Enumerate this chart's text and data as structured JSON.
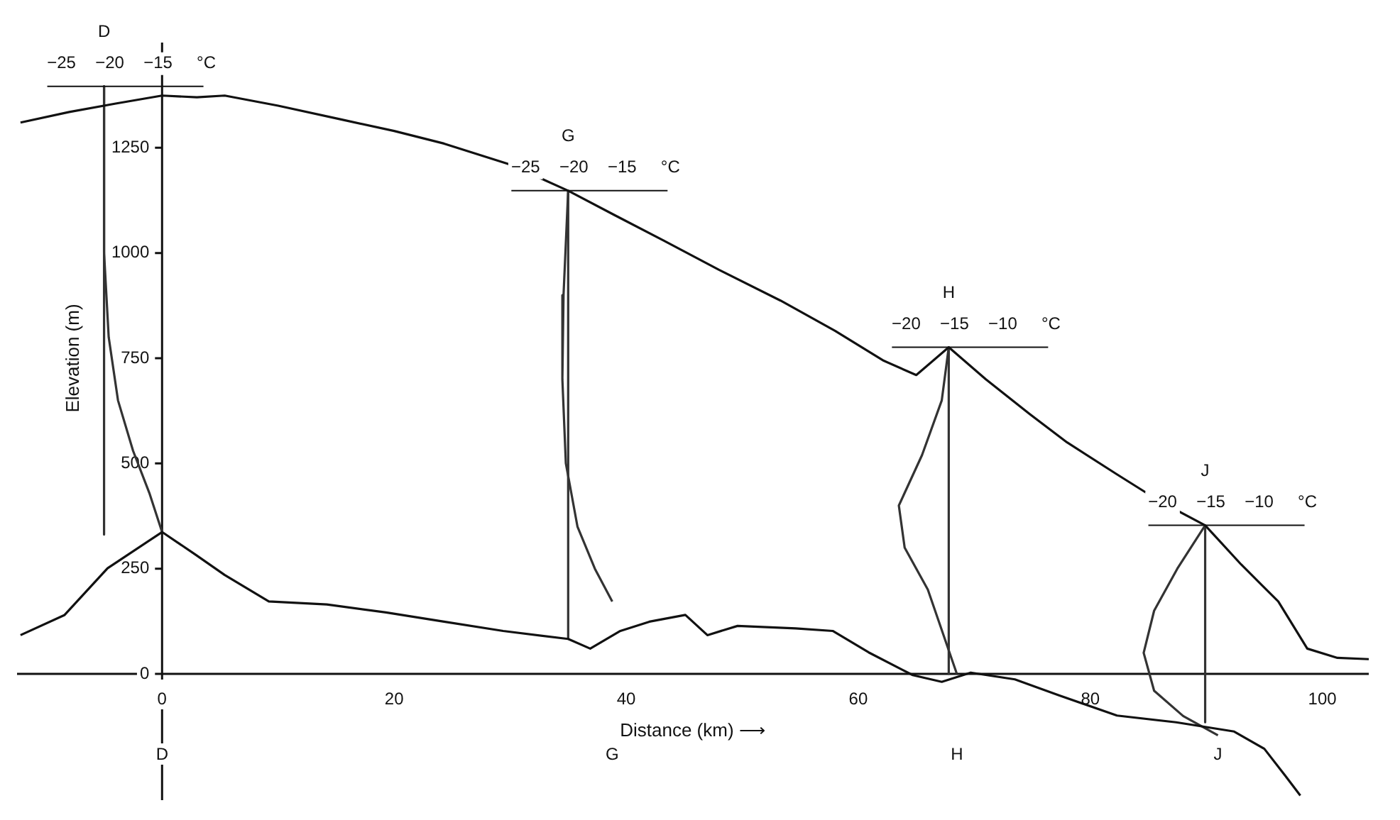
{
  "chart_data": {
    "type": "line",
    "xlabel": "Distance (km) ⟶",
    "ylabel": "Elevation (m)",
    "xlim": [
      -12.5,
      104
    ],
    "ylim": [
      -300,
      1500
    ],
    "xticks": [
      0,
      20,
      40,
      60,
      80,
      100
    ],
    "yticks": [
      0,
      250,
      500,
      750,
      1000,
      1250
    ],
    "grid": false,
    "legend": false,
    "marker": "none",
    "line_style": "solid",
    "series": [
      {
        "color": "#111111",
        "x": [
          -12.2,
          -8,
          -4,
          0,
          3,
          5.4,
          10,
          15.5,
          20,
          24.3,
          30,
          35,
          39,
          43.2,
          48,
          53.3,
          58,
          62.2,
          65,
          67.8,
          71,
          74.8,
          78,
          82.3,
          86,
          89.9,
          93,
          96.2,
          98.7,
          101.3,
          104
        ],
        "values": [
          1310,
          1335,
          1355,
          1374,
          1370,
          1374,
          1350,
          1317,
          1290,
          1260,
          1210,
          1148,
          1090,
          1030,
          960,
          887,
          815,
          744,
          710,
          776,
          700,
          617,
          550,
          474,
          410,
          353,
          260,
          172,
          60,
          38,
          35
        ]
      },
      {
        "color": "#111111",
        "x": [
          -12.2,
          -8.4,
          -4.7,
          0,
          2.9,
          5.4,
          9.2,
          14.2,
          19.3,
          24.3,
          29.4,
          35,
          36.9,
          39.5,
          42,
          45.1,
          47,
          49.6,
          54.6,
          57.8,
          60.9,
          64.7,
          67.2,
          69.7,
          73.5,
          77.3,
          82.3,
          87.4,
          92.4,
          95,
          96.8,
          98.1
        ],
        "values": [
          92,
          140,
          251,
          337,
          283,
          235,
          172,
          165,
          146,
          124,
          102,
          83,
          60,
          102,
          124,
          140,
          92,
          114,
          108,
          102,
          51,
          -3,
          -19,
          3,
          -13,
          -51,
          -99,
          -115,
          -137,
          -178,
          -242,
          -289
        ]
      },
      {
        "color": "#333333",
        "x": [
          -5,
          -5
        ],
        "values": [
          1396,
          331
        ]
      },
      {
        "color": "#333333",
        "x": [
          -5,
          -5,
          -4.6,
          -3.8,
          -2.5,
          -1.1,
          0
        ],
        "values": [
          1396,
          1000,
          800,
          650,
          530,
          430,
          337
        ]
      },
      {
        "color": "#333333",
        "x": [
          35,
          35
        ],
        "values": [
          1148,
          83
        ]
      },
      {
        "color": "#333333",
        "x": [
          35,
          34.6,
          34.5,
          34.8,
          35.8,
          37.3,
          38.8
        ],
        "values": [
          1148,
          900,
          700,
          500,
          350,
          250,
          172
        ]
      },
      {
        "color": "#333333",
        "x": [
          67.8,
          67.8
        ],
        "values": [
          776,
          0
        ]
      },
      {
        "color": "#333333",
        "x": [
          67.8,
          67.2,
          65.5,
          63.5,
          64,
          66,
          68.5
        ],
        "values": [
          776,
          650,
          520,
          400,
          300,
          200,
          0
        ]
      },
      {
        "color": "#333333",
        "x": [
          89.9,
          89.9
        ],
        "values": [
          353,
          -115
        ]
      },
      {
        "color": "#333333",
        "x": [
          89.9,
          87.5,
          85.5,
          84.6,
          85.5,
          88,
          91
        ],
        "values": [
          353,
          250,
          150,
          50,
          -40,
          -100,
          -146
        ]
      }
    ],
    "annotations": [
      "D",
      "−25 −20 −15 °C",
      "G",
      "−25 −20 −15 °C",
      "H",
      "−20 −15 −10 °C",
      "J",
      "−20 −15 −10 °C",
      "D",
      "G",
      "H",
      "J"
    ]
  }
}
